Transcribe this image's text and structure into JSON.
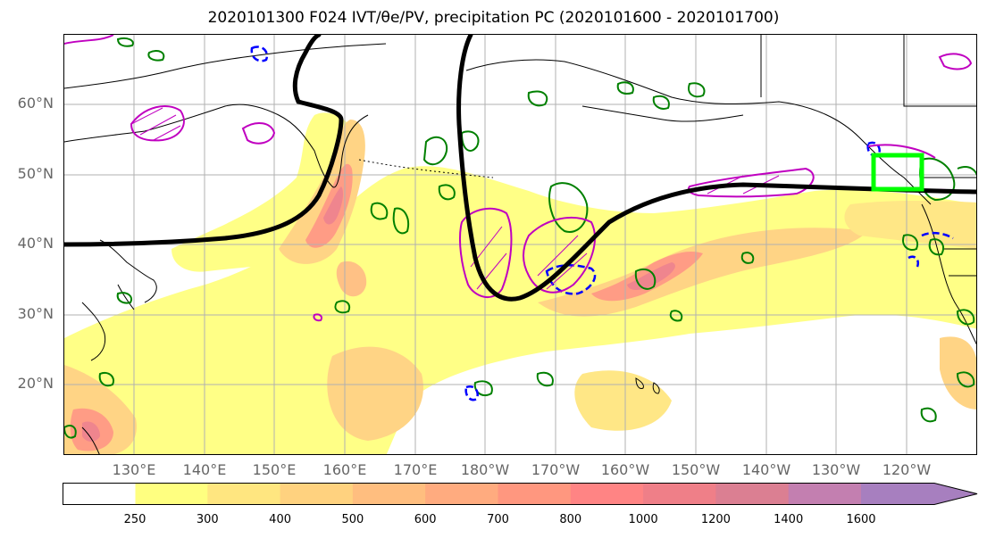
{
  "title": "2020101300 F024 IVT/θe/PV, precipitation PC (2020101600 - 2020101700)",
  "lat_labels": [
    "60°N",
    "50°N",
    "40°N",
    "30°N",
    "20°N"
  ],
  "lon_labels": [
    "130°E",
    "140°E",
    "150°E",
    "160°E",
    "170°E",
    "180°W",
    "170°W",
    "160°W",
    "150°W",
    "140°W",
    "130°W",
    "120°W"
  ],
  "colorbar": {
    "ticks": [
      "250",
      "300",
      "400",
      "500",
      "600",
      "700",
      "800",
      "1000",
      "1200",
      "1400",
      "1600"
    ],
    "colors": [
      "#ffff80",
      "#ffe680",
      "#ffd27f",
      "#ffbe7f",
      "#ffab7f",
      "#ff977f",
      "#ff8484",
      "#ef7f88",
      "#db7f92",
      "#c37fb0",
      "#a77fbf"
    ]
  },
  "legend_colors": {
    "ivt_contour": "#000000",
    "theta_e_contour": "#008000",
    "pv_contour": "#0000ff",
    "precip_contour": "#c000c0",
    "target_box": "#00ff00"
  }
}
